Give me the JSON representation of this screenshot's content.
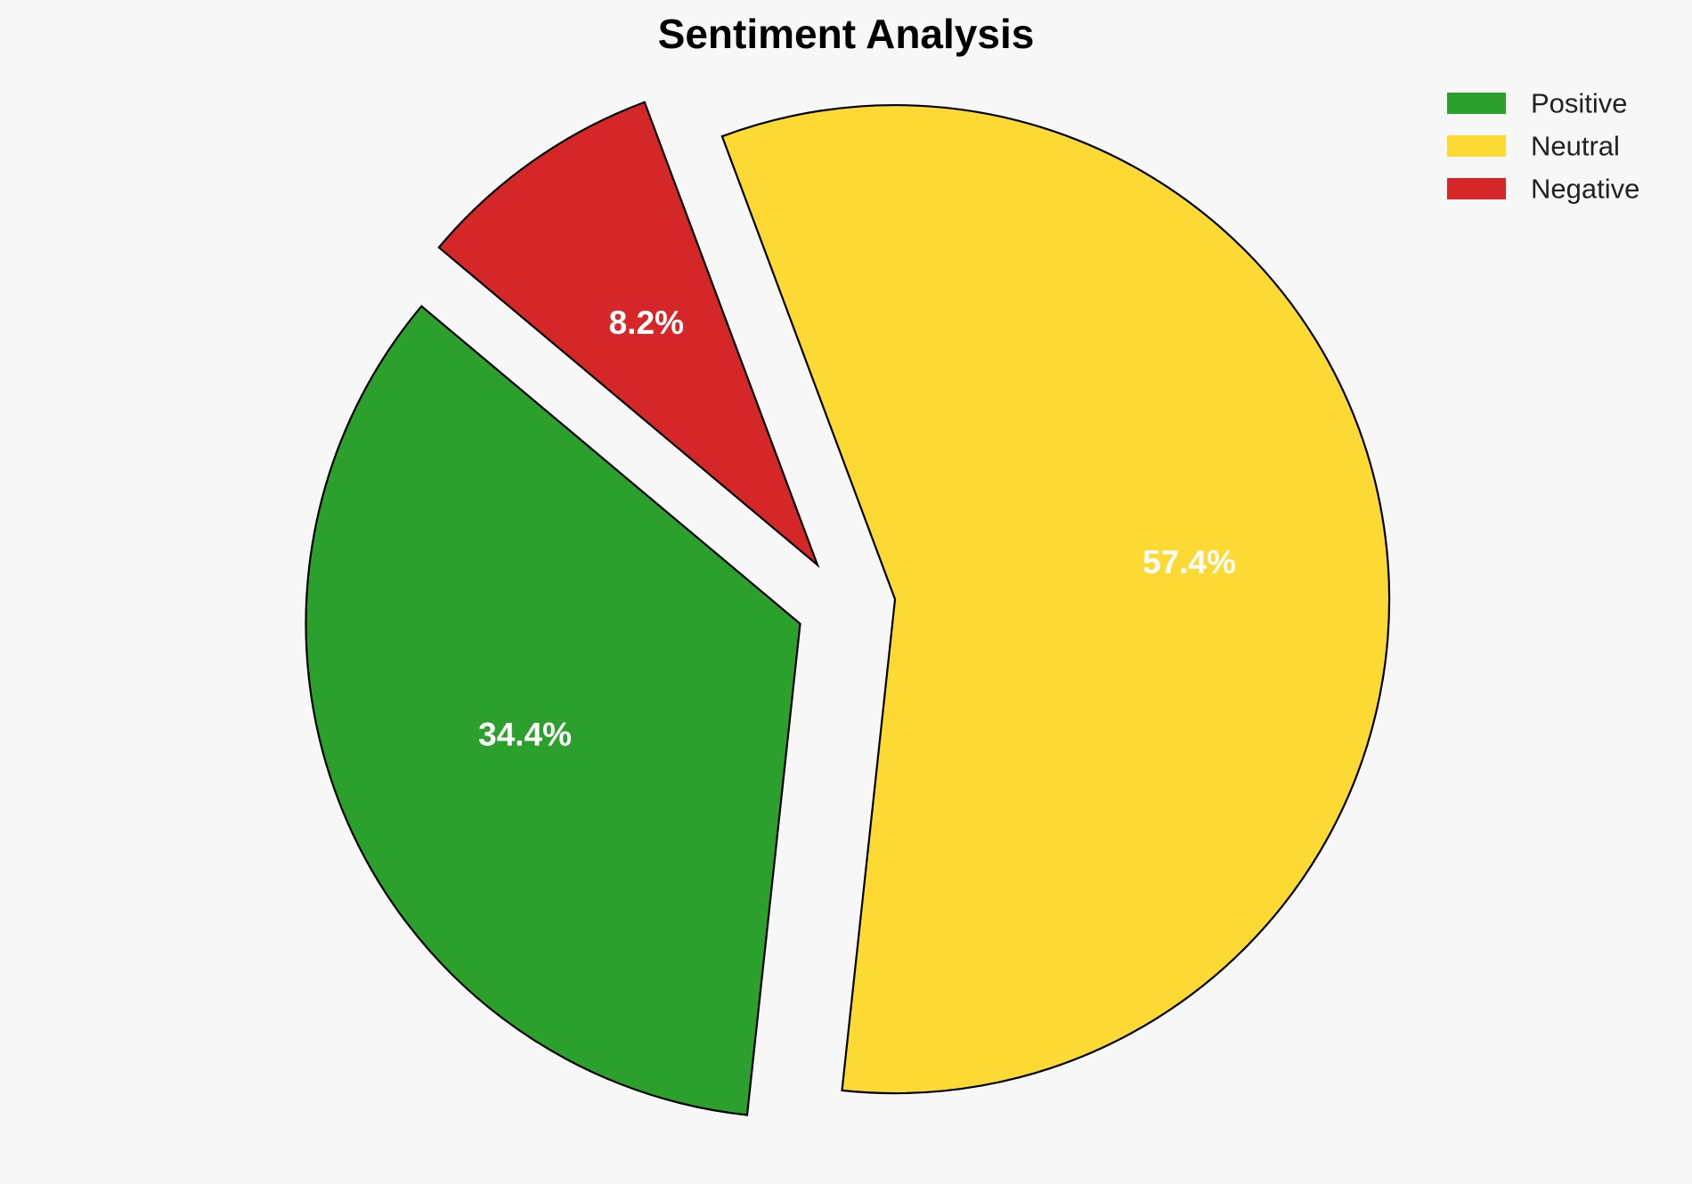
{
  "chart_data": {
    "type": "pie",
    "title": "Sentiment Analysis",
    "slices": [
      {
        "name": "Positive",
        "value": 34.4,
        "label": "34.4%",
        "color": "#2ca02c",
        "exploded": true
      },
      {
        "name": "Neutral",
        "value": 57.4,
        "label": "57.4%",
        "color": "#fdd933",
        "exploded": true
      },
      {
        "name": "Negative",
        "value": 8.2,
        "label": "8.2%",
        "color": "#d62728",
        "exploded": true
      }
    ],
    "legend_placement": "top-right",
    "edge_color": "#000000"
  }
}
